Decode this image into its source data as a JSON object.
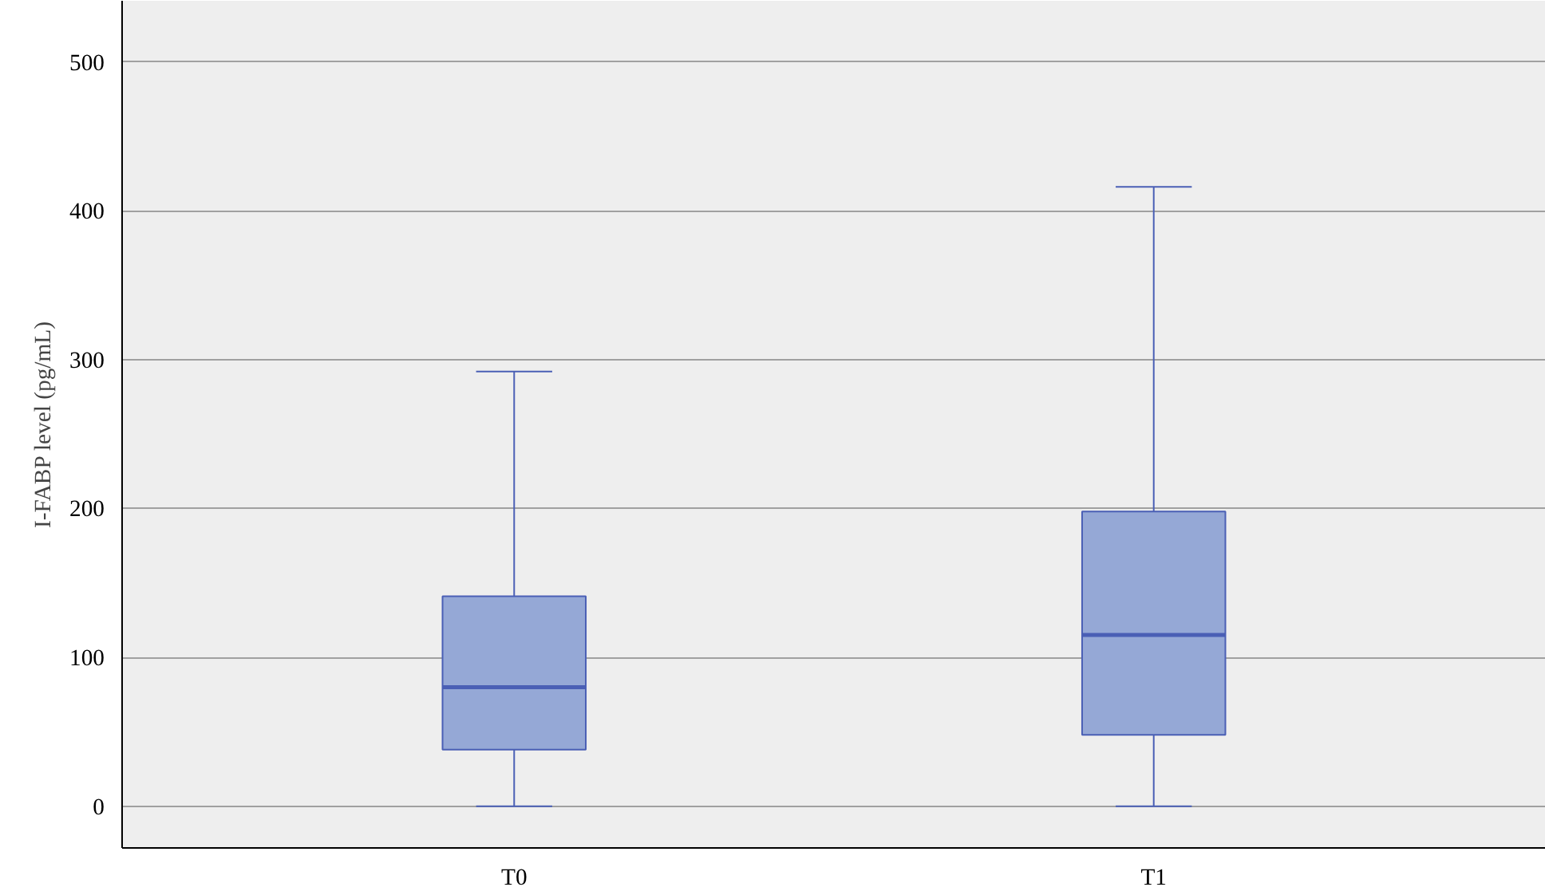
{
  "chart_data": {
    "type": "box",
    "ylabel": "I-FABP level (pg/mL)",
    "categories": [
      "T0",
      "T1"
    ],
    "boxes": [
      {
        "low": 0,
        "q1": 38,
        "median": 80,
        "q3": 141,
        "high": 292
      },
      {
        "low": 0,
        "q1": 48,
        "median": 115,
        "q3": 198,
        "high": 416
      }
    ],
    "color": "#95a8d6",
    "ylim": [
      -28,
      541
    ],
    "yticks": [
      0,
      100,
      200,
      300,
      400,
      500
    ],
    "grid": "y"
  }
}
